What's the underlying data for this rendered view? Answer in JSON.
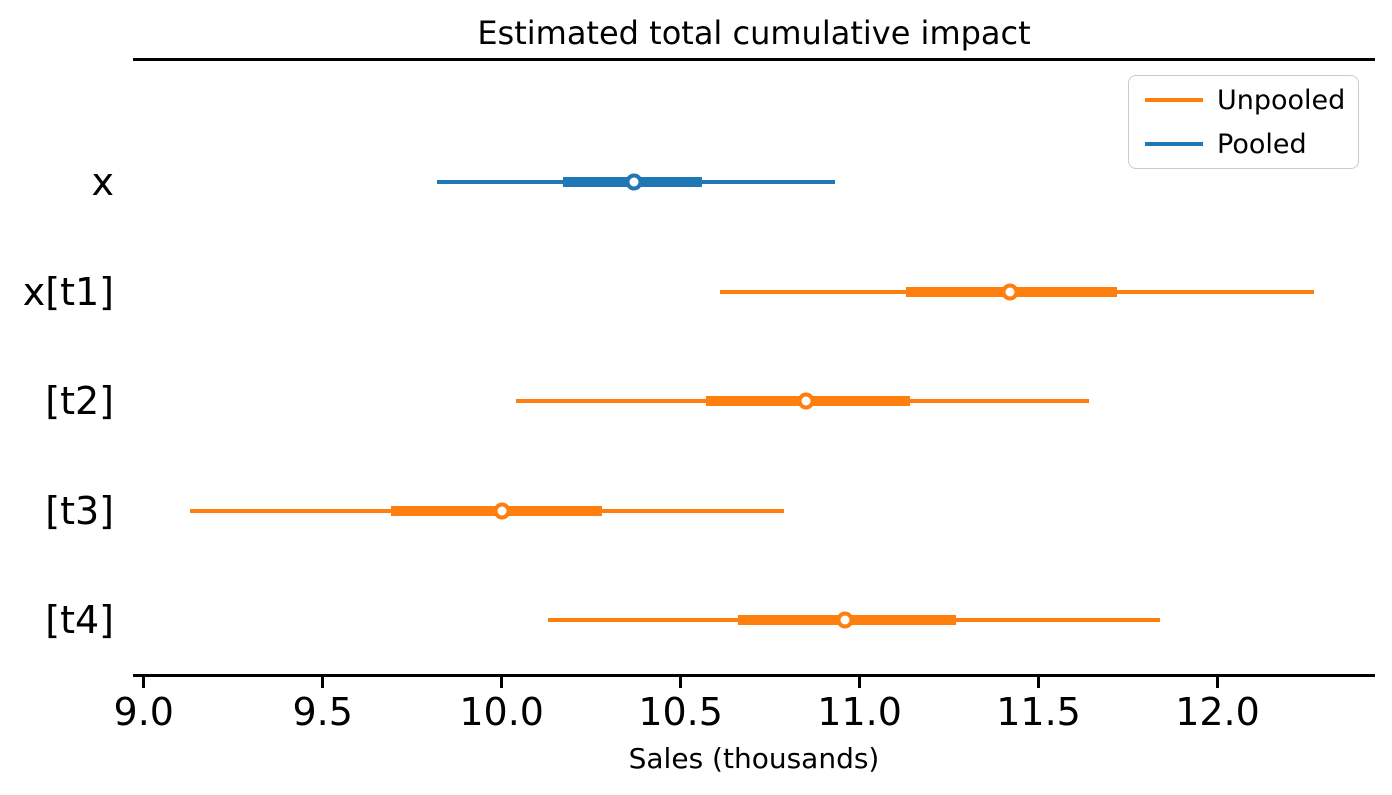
{
  "chart_data": {
    "type": "forest",
    "title": "Estimated total cumulative impact",
    "xlabel": "Sales (thousands)",
    "xlim": [
      8.97,
      12.44
    ],
    "grid": false,
    "x_ticks": [
      {
        "value": 9.0,
        "label": "9.0"
      },
      {
        "value": 9.5,
        "label": "9.5"
      },
      {
        "value": 10.0,
        "label": "10.0"
      },
      {
        "value": 10.5,
        "label": "10.5"
      },
      {
        "value": 11.0,
        "label": "11.0"
      },
      {
        "value": 11.5,
        "label": "11.5"
      },
      {
        "value": 12.0,
        "label": "12.0"
      }
    ],
    "legend": {
      "position": "upper right",
      "entries": [
        {
          "label": "Unpooled",
          "color": "#ff7f0e"
        },
        {
          "label": "Pooled",
          "color": "#1f77b4"
        }
      ]
    },
    "rows": [
      {
        "label": "x",
        "series": "Pooled",
        "color": "#1f77b4",
        "interval_outer": [
          9.82,
          10.93
        ],
        "interval_inner": [
          10.17,
          10.56
        ],
        "point": 10.37
      },
      {
        "label": "x[t1]",
        "series": "Unpooled",
        "color": "#ff7f0e",
        "interval_outer": [
          10.61,
          12.27
        ],
        "interval_inner": [
          11.13,
          11.72
        ],
        "point": 11.42
      },
      {
        "label": "[t2]",
        "series": "Unpooled",
        "color": "#ff7f0e",
        "interval_outer": [
          10.04,
          11.64
        ],
        "interval_inner": [
          10.57,
          11.14
        ],
        "point": 10.85
      },
      {
        "label": "[t3]",
        "series": "Unpooled",
        "color": "#ff7f0e",
        "interval_outer": [
          9.13,
          10.79
        ],
        "interval_inner": [
          9.69,
          10.28
        ],
        "point": 10.0
      },
      {
        "label": "[t4]",
        "series": "Unpooled",
        "color": "#ff7f0e",
        "interval_outer": [
          10.13,
          11.84
        ],
        "interval_inner": [
          10.66,
          11.27
        ],
        "point": 10.96
      }
    ]
  },
  "colors": {
    "unpooled": "#ff7f0e",
    "pooled": "#1f77b4",
    "spine": "#000000",
    "legend_border": "#cccccc",
    "background": "#ffffff"
  }
}
